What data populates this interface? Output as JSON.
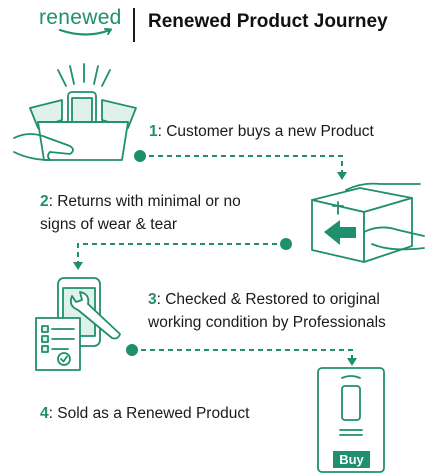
{
  "header": {
    "brand": "renewed",
    "title": "Renewed Product Journey"
  },
  "steps": [
    {
      "number": "1",
      "text": ": Customer buys a new Product"
    },
    {
      "number": "2",
      "text": ": Returns with minimal or no",
      "text2": "signs of wear & tear"
    },
    {
      "number": "3",
      "text": ":  Checked & Restored to original",
      "text2": "working condition by Professionals"
    },
    {
      "number": "4",
      "text": ": Sold as a Renewed Product"
    }
  ],
  "buy_button": {
    "label": "Buy"
  },
  "colors": {
    "accent": "#1f8f6e",
    "light_accent": "#dff2ea",
    "text": "#1a1a1a"
  }
}
